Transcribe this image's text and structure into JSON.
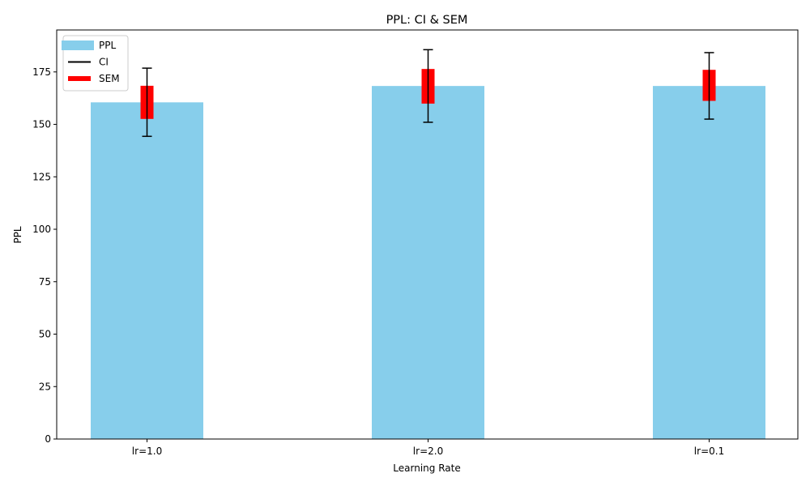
{
  "chart_data": {
    "type": "bar",
    "title": "PPL: CI & SEM",
    "xlabel": "Learning Rate",
    "ylabel": "PPL",
    "categories": [
      "lr=1.0",
      "lr=2.0",
      "lr=0.1"
    ],
    "values": [
      160.5,
      168.3,
      168.3
    ],
    "ci": [
      [
        144.3,
        176.8
      ],
      [
        151.0,
        185.6
      ],
      [
        152.5,
        184.2
      ]
    ],
    "sem": [
      [
        152.6,
        168.4
      ],
      [
        159.9,
        176.4
      ],
      [
        161.2,
        176.0
      ]
    ],
    "ylim": [
      0,
      195
    ],
    "yticks": [
      0,
      25,
      50,
      75,
      100,
      125,
      150,
      175
    ],
    "grid": false,
    "legend": {
      "position": "top-left",
      "entries": [
        {
          "label": "PPL",
          "color": "#87ceeb",
          "kind": "patch"
        },
        {
          "label": "CI",
          "color": "#000000",
          "kind": "line"
        },
        {
          "label": "SEM",
          "color": "#ff0000",
          "kind": "thick-line"
        }
      ]
    },
    "colors": {
      "bar": "#87ceeb",
      "ci": "#000000",
      "sem": "#ff0000"
    }
  }
}
